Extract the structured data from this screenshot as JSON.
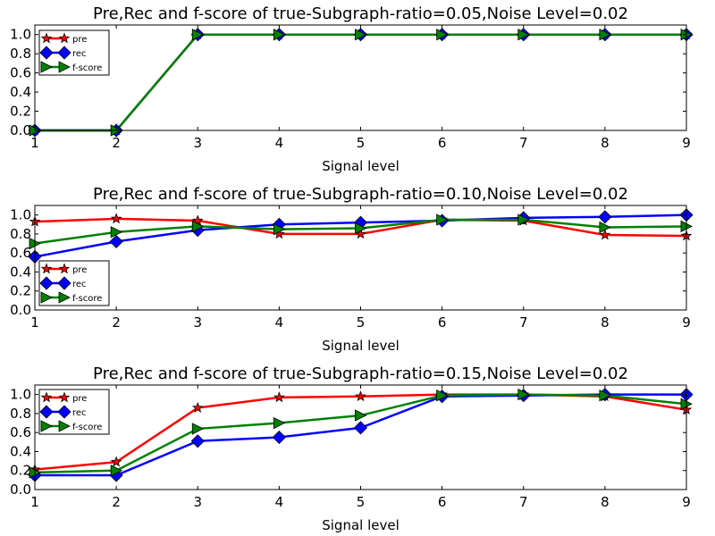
{
  "chart_data": [
    {
      "type": "line",
      "title": "Pre,Rec and f-score of true-Subgraph-ratio=0.05,Noise Level=0.02",
      "xlabel": "Signal level",
      "ylabel": "",
      "x": [
        1,
        2,
        3,
        4,
        5,
        6,
        7,
        8,
        9
      ],
      "xlim": [
        1,
        9
      ],
      "ylim": [
        0,
        1.1
      ],
      "yticks": [
        "0.0",
        "0.2",
        "0.4",
        "0.6",
        "0.8",
        "1.0"
      ],
      "xticks": [
        "1",
        "2",
        "3",
        "4",
        "5",
        "6",
        "7",
        "8",
        "9"
      ],
      "legend_position": "top-left",
      "grid": false,
      "series": [
        {
          "name": "pre",
          "color": "#ff0000",
          "marker": "star",
          "values": [
            0,
            0,
            1,
            1,
            1,
            1,
            1,
            1,
            1
          ]
        },
        {
          "name": "rec",
          "color": "#0000ff",
          "marker": "diamond",
          "values": [
            0,
            0,
            1,
            1,
            1,
            1,
            1,
            1,
            1
          ]
        },
        {
          "name": "f-score",
          "color": "#008000",
          "marker": "triangle-right",
          "values": [
            0,
            0,
            1,
            1,
            1,
            1,
            1,
            1,
            1
          ]
        }
      ]
    },
    {
      "type": "line",
      "title": "Pre,Rec and f-score of true-Subgraph-ratio=0.10,Noise Level=0.02",
      "xlabel": "Signal level",
      "ylabel": "",
      "x": [
        1,
        2,
        3,
        4,
        5,
        6,
        7,
        8,
        9
      ],
      "xlim": [
        1,
        9
      ],
      "ylim": [
        0,
        1.1
      ],
      "yticks": [
        "0.0",
        "0.2",
        "0.4",
        "0.6",
        "0.8",
        "1.0"
      ],
      "xticks": [
        "1",
        "2",
        "3",
        "4",
        "5",
        "6",
        "7",
        "8",
        "9"
      ],
      "legend_position": "lower-left",
      "grid": false,
      "series": [
        {
          "name": "pre",
          "color": "#ff0000",
          "marker": "star",
          "values": [
            0.93,
            0.96,
            0.94,
            0.8,
            0.8,
            0.95,
            0.94,
            0.79,
            0.78
          ]
        },
        {
          "name": "rec",
          "color": "#0000ff",
          "marker": "diamond",
          "values": [
            0.56,
            0.72,
            0.84,
            0.9,
            0.92,
            0.94,
            0.97,
            0.98,
            1.0
          ]
        },
        {
          "name": "f-score",
          "color": "#008000",
          "marker": "triangle-right",
          "values": [
            0.7,
            0.82,
            0.88,
            0.85,
            0.86,
            0.95,
            0.95,
            0.87,
            0.88
          ]
        }
      ]
    },
    {
      "type": "line",
      "title": "Pre,Rec and f-score of true-Subgraph-ratio=0.15,Noise Level=0.02",
      "xlabel": "Signal level",
      "ylabel": "",
      "x": [
        1,
        2,
        3,
        4,
        5,
        6,
        7,
        8,
        9
      ],
      "xlim": [
        1,
        9
      ],
      "ylim": [
        0,
        1.1
      ],
      "yticks": [
        "0.0",
        "0.2",
        "0.4",
        "0.6",
        "0.8",
        "1.0"
      ],
      "xticks": [
        "1",
        "2",
        "3",
        "4",
        "5",
        "6",
        "7",
        "8",
        "9"
      ],
      "legend_position": "top-left",
      "grid": false,
      "series": [
        {
          "name": "pre",
          "color": "#ff0000",
          "marker": "star",
          "values": [
            0.21,
            0.29,
            0.86,
            0.97,
            0.98,
            1.0,
            1.0,
            0.98,
            0.84
          ]
        },
        {
          "name": "rec",
          "color": "#0000ff",
          "marker": "diamond",
          "values": [
            0.15,
            0.15,
            0.51,
            0.55,
            0.65,
            0.98,
            0.99,
            1.0,
            1.0
          ]
        },
        {
          "name": "f-score",
          "color": "#008000",
          "marker": "triangle-right",
          "values": [
            0.18,
            0.2,
            0.64,
            0.7,
            0.78,
            0.99,
            1.0,
            0.99,
            0.9
          ]
        }
      ]
    }
  ]
}
